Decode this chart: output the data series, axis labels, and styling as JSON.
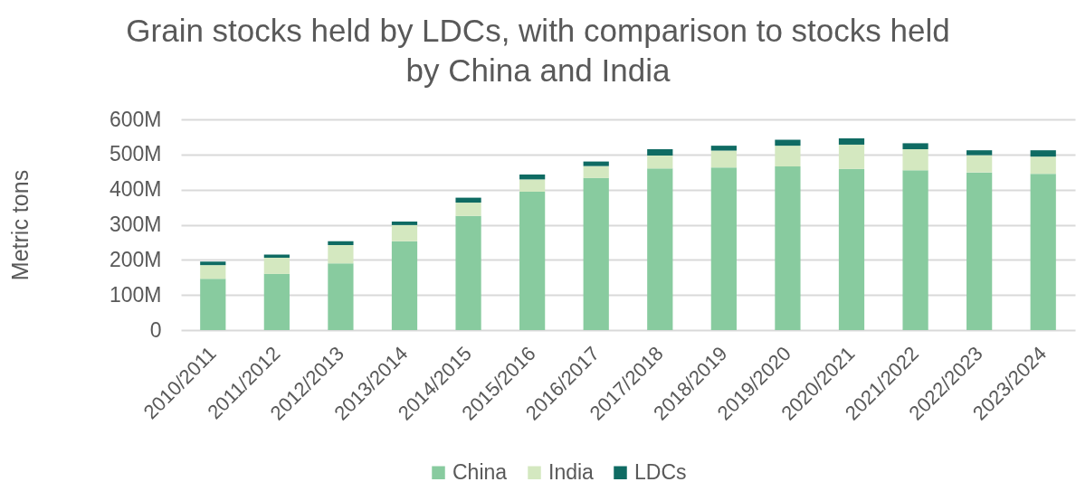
{
  "chart_data": {
    "type": "bar",
    "title": "Grain stocks held by LDCs, with comparison to stocks held by China and India",
    "ylabel": "Metric tons",
    "categories": [
      "2010/2011",
      "2011/2012",
      "2012/2013",
      "2013/2014",
      "2014/2015",
      "2015/2016",
      "2016/2017",
      "2017/2018",
      "2018/2019",
      "2019/2020",
      "2020/2021",
      "2021/2022",
      "2022/2023",
      "2023/2024"
    ],
    "series": [
      {
        "name": "China",
        "color": "#88cb9f",
        "values": [
          146000000,
          160000000,
          190000000,
          253000000,
          325000000,
          394000000,
          433000000,
          460000000,
          463000000,
          466000000,
          459000000,
          455000000,
          449000000,
          445000000
        ]
      },
      {
        "name": "India",
        "color": "#d4e8c0",
        "values": [
          39000000,
          46000000,
          52000000,
          46000000,
          38000000,
          35000000,
          34000000,
          37000000,
          48000000,
          59000000,
          69000000,
          60000000,
          49000000,
          49000000
        ]
      },
      {
        "name": "LDCs",
        "color": "#0f6b63",
        "values": [
          10000000,
          9000000,
          11000000,
          10000000,
          14000000,
          14000000,
          13000000,
          18000000,
          14000000,
          17000000,
          18000000,
          17000000,
          14000000,
          18000000
        ]
      }
    ],
    "stacked": true,
    "ylim": [
      0,
      600000000
    ],
    "yticks": [
      0,
      {
        "value": 100000000,
        "label": "100M"
      },
      {
        "value": 200000000,
        "label": "200M"
      },
      {
        "value": 300000000,
        "label": "300M"
      },
      {
        "value": 400000000,
        "label": "400M"
      },
      {
        "value": 500000000,
        "label": "500M"
      },
      {
        "value": 600000000,
        "label": "600M"
      }
    ],
    "grid": "y",
    "legend": "bottom"
  }
}
